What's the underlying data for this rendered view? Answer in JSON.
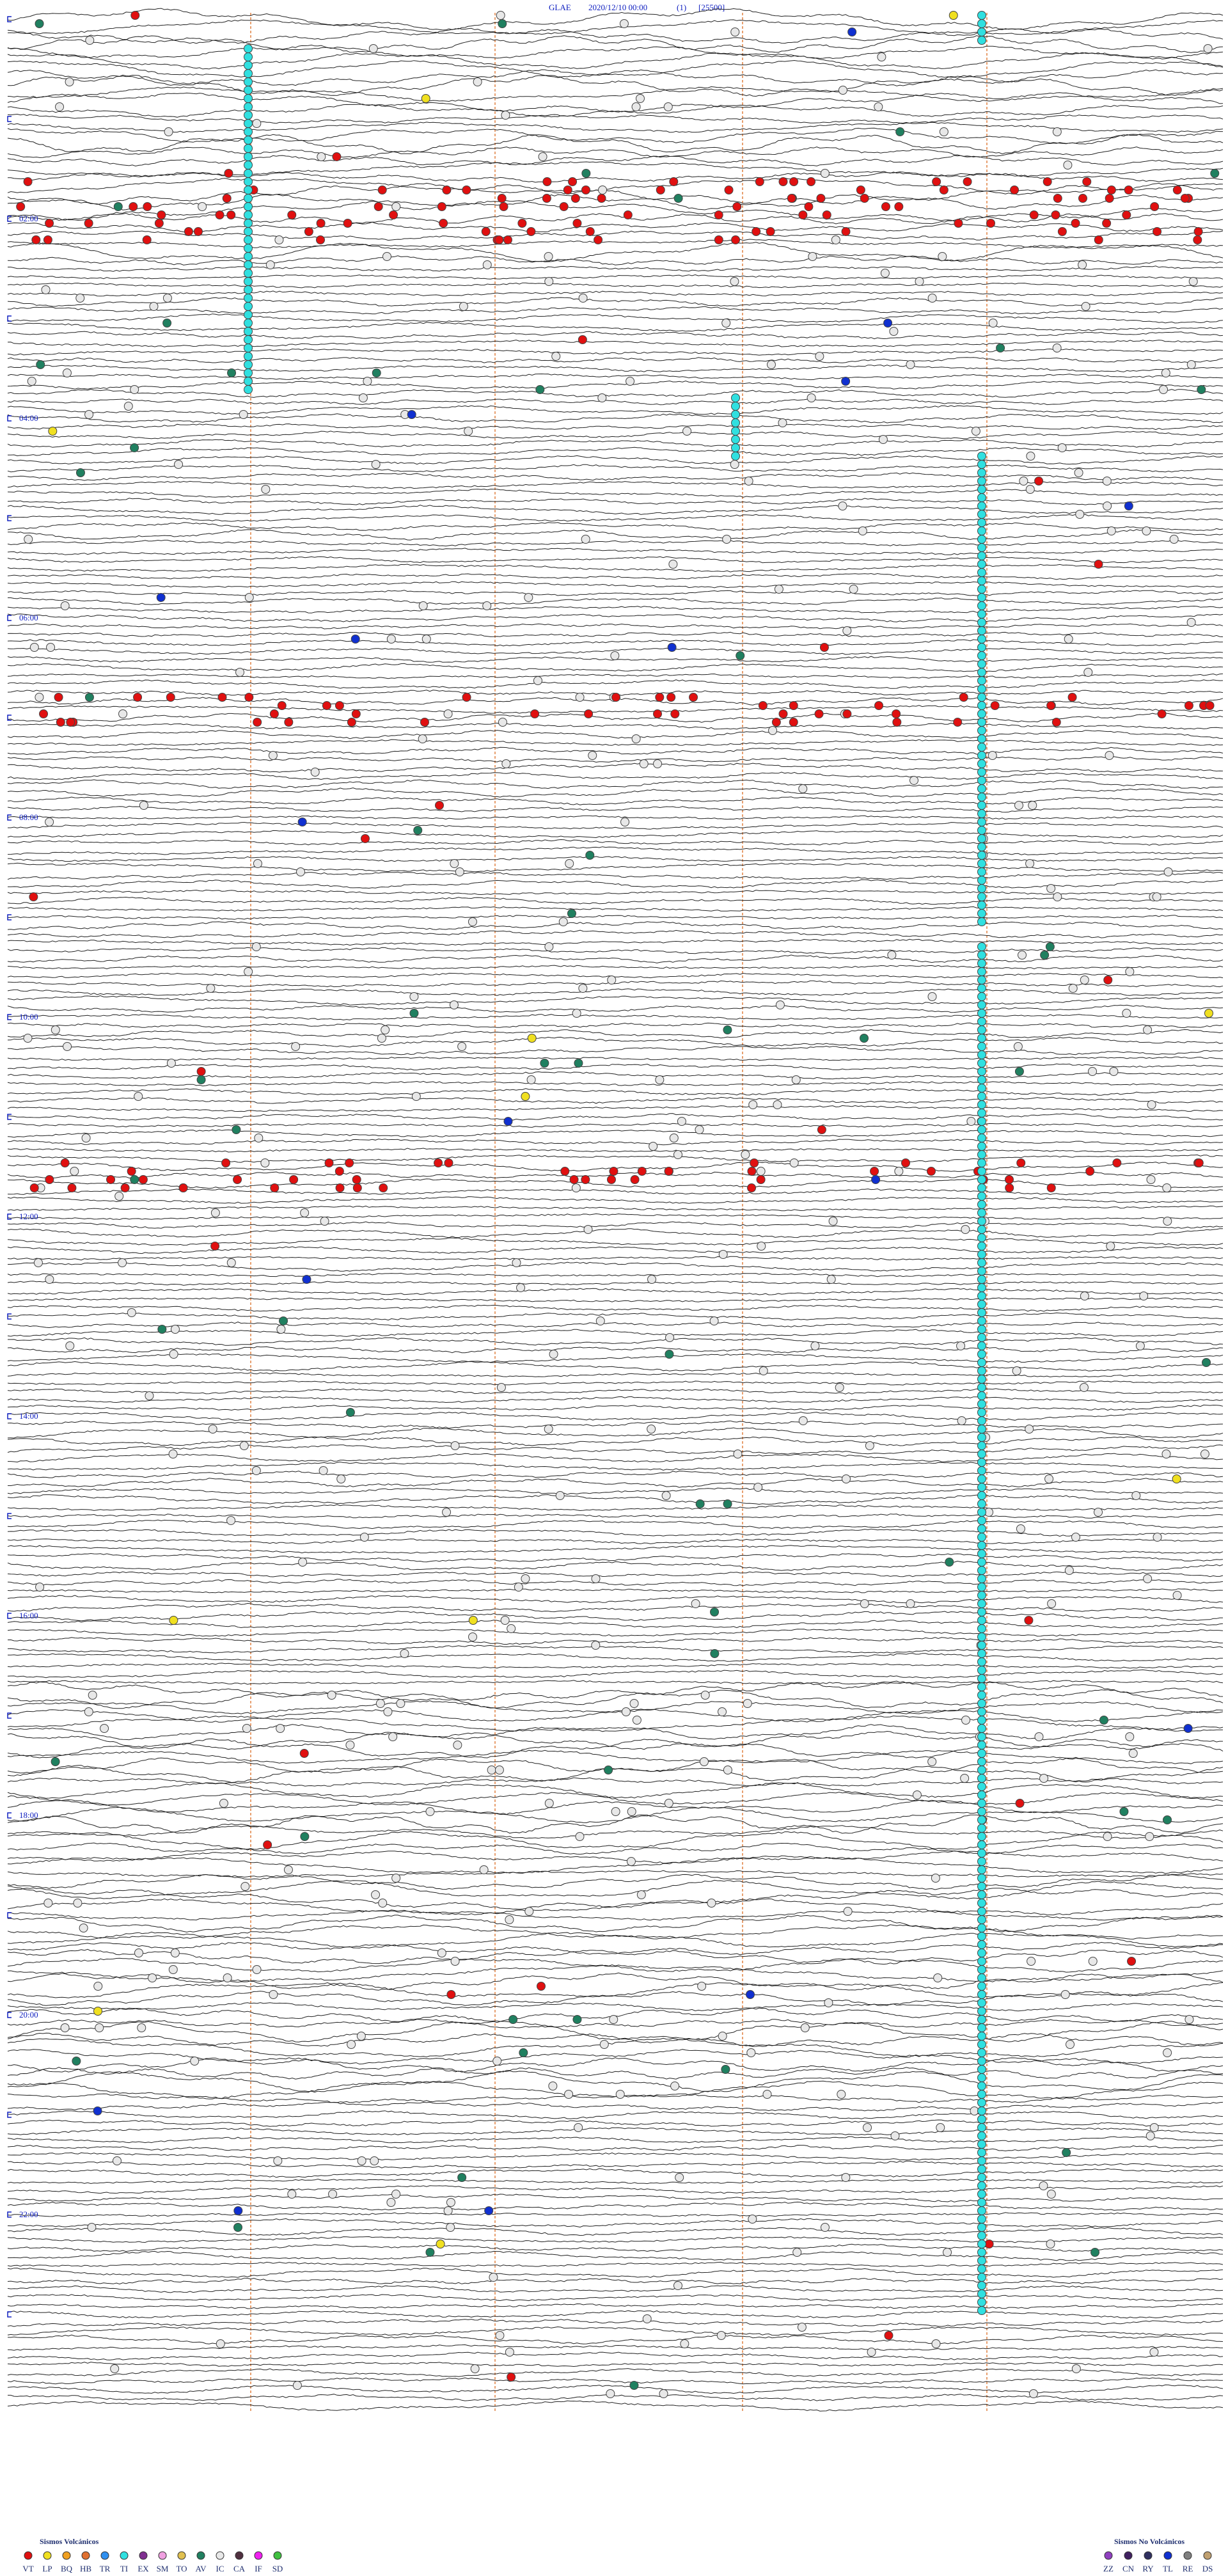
{
  "header": {
    "station": "GLAE",
    "datetime": "2020/12/10 00:00",
    "index": "(1)",
    "count": "[25500]"
  },
  "time_labels": [
    "02:00",
    "04:00",
    "06:00",
    "08:00",
    "10:00",
    "12:00",
    "14:00",
    "16:00",
    "18:00",
    "20:00",
    "22:00"
  ],
  "legend_volcanic": {
    "title": "Sismos Volcánicos",
    "items": [
      {
        "code": "VT",
        "color": "#e01010"
      },
      {
        "code": "LP",
        "color": "#f0e020"
      },
      {
        "code": "BQ",
        "color": "#f0a020"
      },
      {
        "code": "HB",
        "color": "#e07030"
      },
      {
        "code": "TR",
        "color": "#3090f0"
      },
      {
        "code": "TI",
        "color": "#30e0e0"
      },
      {
        "code": "EX",
        "color": "#803090"
      },
      {
        "code": "SM",
        "color": "#f0a0e0"
      },
      {
        "code": "TO",
        "color": "#e0c050"
      },
      {
        "code": "AV",
        "color": "#208060"
      },
      {
        "code": "IC",
        "color": "#e8e8e8"
      },
      {
        "code": "CA",
        "color": "#503040"
      },
      {
        "code": "IF",
        "color": "#f020f0"
      },
      {
        "code": "SD",
        "color": "#40c040"
      }
    ]
  },
  "legend_non_volcanic": {
    "title": "Sismos No Volcánicos",
    "items": [
      {
        "code": "ZZ",
        "color": "#9040c0"
      },
      {
        "code": "CN",
        "color": "#402060"
      },
      {
        "code": "RY",
        "color": "#303060"
      },
      {
        "code": "TL",
        "color": "#1030d0"
      },
      {
        "code": "RE",
        "color": "#808080"
      },
      {
        "code": "DS",
        "color": "#c0a070"
      }
    ]
  }
}
